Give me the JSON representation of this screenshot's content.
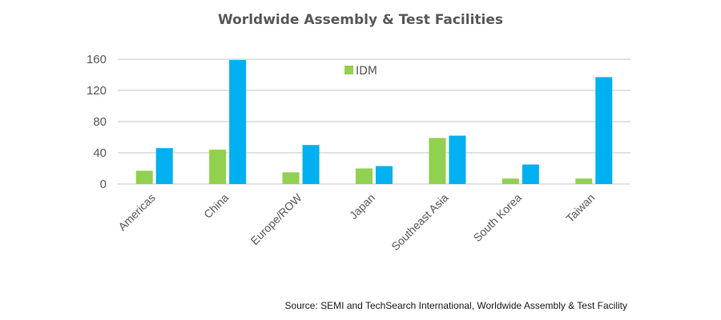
{
  "chart_data": {
    "type": "bar",
    "title": "Worldwide Assembly & Test Facilities",
    "xlabel": "",
    "ylabel": "",
    "categories": [
      "Americas",
      "China",
      "Europe/ROW",
      "Japan",
      "Southeast Asia",
      "South Korea",
      "Taiwan"
    ],
    "series": [
      {
        "name": "IDM",
        "color": "#92D050",
        "values": [
          17,
          44,
          15,
          20,
          59,
          7,
          7
        ]
      },
      {
        "name": "",
        "color": "#00B0F0",
        "values": [
          46,
          159,
          50,
          23,
          62,
          25,
          137
        ]
      }
    ],
    "ylim": [
      0,
      160
    ],
    "yticks": [
      0,
      40,
      80,
      120,
      160
    ],
    "grid": true,
    "legend": {
      "entries": [
        "IDM"
      ],
      "placement": "top-center"
    },
    "source": "Source: SEMI and TechSearch International, Worldwide Assembly & Test Facility"
  }
}
